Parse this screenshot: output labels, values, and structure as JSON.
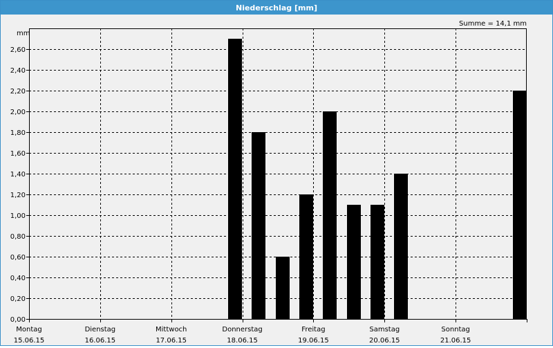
{
  "window": {
    "title": "Niederschlag [mm]"
  },
  "summary": "Summe = 14,1 mm",
  "chart_data": {
    "type": "bar",
    "title": "Niederschlag [mm]",
    "ylabel": "mm",
    "xlabel": "",
    "ylim": [
      0,
      2.8
    ],
    "yticks": [
      "0,00",
      "0,20",
      "0,40",
      "0,60",
      "0,80",
      "1,00",
      "1,20",
      "1,40",
      "1,60",
      "1,80",
      "2,00",
      "2,20",
      "2,40",
      "2,60"
    ],
    "ytick_values": [
      0,
      0.2,
      0.4,
      0.6,
      0.8,
      1.0,
      1.2,
      1.4,
      1.6,
      1.8,
      2.0,
      2.2,
      2.4,
      2.6
    ],
    "days": [
      {
        "weekday": "Montag",
        "date": "15.06.15"
      },
      {
        "weekday": "Dienstag",
        "date": "16.06.15"
      },
      {
        "weekday": "Mittwoch",
        "date": "17.06.15"
      },
      {
        "weekday": "Donnerstag",
        "date": "18.06.15"
      },
      {
        "weekday": "Freitag",
        "date": "19.06.15"
      },
      {
        "weekday": "Samstag",
        "date": "20.06.15"
      },
      {
        "weekday": "Sonntag",
        "date": "21.06.15"
      }
    ],
    "bar_interval_hours": 8,
    "bars": [
      {
        "day_index": 2.9,
        "value": 2.7
      },
      {
        "day_index": 3.23,
        "value": 1.8
      },
      {
        "day_index": 3.57,
        "value": 0.6
      },
      {
        "day_index": 3.9,
        "value": 1.2
      },
      {
        "day_index": 4.23,
        "value": 2.0
      },
      {
        "day_index": 4.57,
        "value": 1.1
      },
      {
        "day_index": 4.9,
        "value": 1.1
      },
      {
        "day_index": 5.23,
        "value": 1.4
      },
      {
        "day_index": 6.9,
        "value": 2.2
      }
    ],
    "grid": true,
    "colors": {
      "bar": "#000000",
      "title_bar": "#3d95cc",
      "background": "#f0f0f0"
    }
  }
}
